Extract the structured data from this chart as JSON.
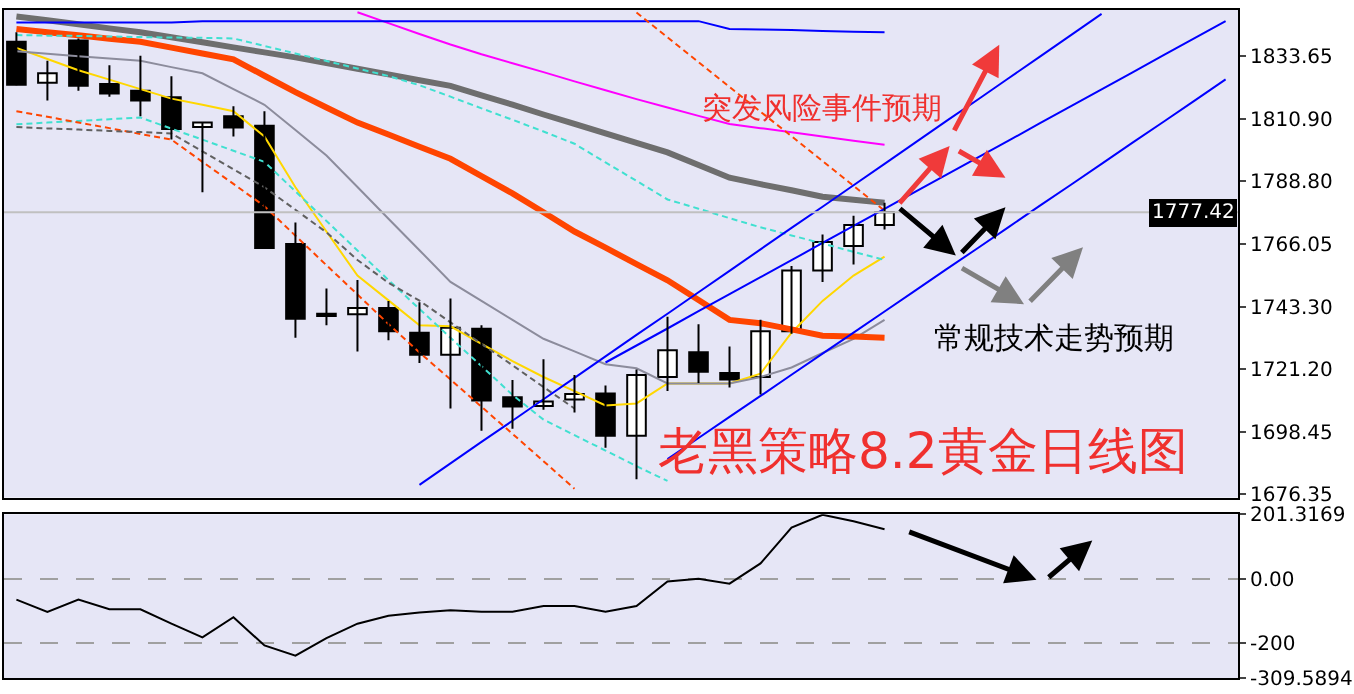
{
  "chart_data": [
    {
      "type": "candlestick",
      "title": "老黑策略8.2黄金日线图",
      "categories": [
        null,
        null,
        null,
        null,
        null,
        null,
        null,
        null,
        null,
        null,
        null,
        null,
        null,
        null,
        null,
        null,
        null,
        null,
        null,
        null,
        null,
        null,
        null,
        null,
        null,
        null,
        null,
        null,
        null,
        null,
        null,
        null,
        null,
        null,
        null,
        null,
        null,
        null,
        null,
        null
      ],
      "ohlc": [
        [
          1838.6,
          1842,
          1823,
          1823.2
        ],
        [
          1823.9,
          1831.8,
          1817.5,
          1827.3
        ],
        [
          1839.1,
          1839.8,
          1821,
          1822.8
        ],
        [
          1823.4,
          1830.2,
          1818.9,
          1820
        ],
        [
          1821,
          1833.6,
          1811.9,
          1817.5
        ],
        [
          1818.7,
          1826.2,
          1803.5,
          1807.3
        ],
        [
          1808,
          1809.6,
          1784.6,
          1809.6
        ],
        [
          1811.9,
          1815.5,
          1804.6,
          1807.8
        ],
        [
          1808.5,
          1813.7,
          1764.2,
          1764.6
        ],
        [
          1766,
          1773.7,
          1732.4,
          1739.2
        ],
        [
          1741,
          1750.1,
          1736.9,
          1740.2
        ],
        [
          1740.8,
          1753.1,
          1727.4,
          1743.1
        ],
        [
          1743.1,
          1745.6,
          1731.5,
          1734.7
        ],
        [
          1734.2,
          1745.1,
          1723.3,
          1726.3
        ],
        [
          1726.3,
          1746.5,
          1707,
          1736
        ],
        [
          1735.6,
          1736.9,
          1699,
          1709.9
        ],
        [
          1711,
          1717.2,
          1699.7,
          1707.7
        ],
        [
          1707.9,
          1724.7,
          1706.5,
          1709.5
        ],
        [
          1710.2,
          1719,
          1705.6,
          1712.2
        ],
        [
          1712.4,
          1715.2,
          1692.9,
          1697.2
        ],
        [
          1697.2,
          1721,
          1681.6,
          1719
        ],
        [
          1718.3,
          1739.9,
          1713.3,
          1727.9
        ],
        [
          1727.2,
          1737.2,
          1716.1,
          1720.2
        ],
        [
          1719.7,
          1729.2,
          1714.5,
          1717.4
        ],
        [
          1718.3,
          1738.8,
          1712,
          1734.7
        ],
        [
          1734.7,
          1758.1,
          1733.8,
          1756.5
        ],
        [
          1756.5,
          1769.4,
          1752.4,
          1766.7
        ],
        [
          1765.3,
          1776.2,
          1758.7,
          1772.8
        ],
        [
          1772.8,
          1780.8,
          1771.2,
          1777.4
        ],
        null,
        null,
        null,
        null,
        null,
        null,
        null,
        null,
        null,
        null,
        null
      ],
      "series": [
        {
          "type": "line",
          "color": "#ffd700",
          "values": [
            1836.4,
            1832.4,
            1828.4,
            1825,
            1821.6,
            1818.2,
            1816,
            1813.7,
            1804.6,
            1786.4,
            1770.5,
            1754.7,
            1745.8,
            1736.9,
            1736.5,
            1730.2,
            1724,
            1718.3,
            1713.2,
            1708.1,
            1708.8,
            1716,
            1716,
            1716,
            1719.5,
            1734.2,
            1745.6,
            1754.7,
            1761.5,
            null,
            null,
            null,
            null,
            null,
            null,
            null,
            null,
            null,
            null,
            null
          ]
        },
        {
          "type": "line",
          "color": "#8c8c9c",
          "values": [
            1835.2,
            1834.3,
            1833.4,
            1832.6,
            1831.8,
            1829.5,
            1827.3,
            1821.6,
            1816,
            1806.9,
            1797.8,
            1786.5,
            1775.1,
            1763.8,
            1752.4,
            1745.6,
            1738.8,
            1732,
            1727.5,
            1722.9,
            1721.4,
            1716,
            1716,
            1716,
            1718.3,
            1721.7,
            1726.9,
            1732,
            1738.8,
            null,
            null,
            null,
            null,
            null,
            null,
            null,
            null,
            null,
            null,
            null
          ]
        },
        {
          "type": "line",
          "color": "#ff4500",
          "values": [
            1843.2,
            1842,
            1840.9,
            1839.7,
            1838.6,
            1836.5,
            1834.4,
            1832.3,
            1826.4,
            1820.5,
            1815,
            1809.6,
            1805.3,
            1800.9,
            1796.6,
            1790.4,
            1784.2,
            1777.4,
            1770.5,
            1764.7,
            1758.8,
            1753,
            1745.9,
            1738.8,
            1737.6,
            1735.4,
            1733.1,
            1732.8,
            1732.4,
            null,
            null,
            null,
            null,
            null,
            null,
            null,
            null,
            null,
            null,
            null
          ]
        },
        {
          "type": "line",
          "color": "#6e6e6e",
          "values": [
            1847.7,
            1846.3,
            1844.9,
            1843.4,
            1842,
            1840.2,
            1838.4,
            1836.6,
            1834.8,
            1833,
            1831,
            1828.9,
            1826.9,
            1824.8,
            1822.8,
            1819.4,
            1816,
            1812.5,
            1809.1,
            1805.7,
            1802.3,
            1798.9,
            1794.4,
            1789.8,
            1787.5,
            1785.3,
            1783,
            1781.9,
            1780.8,
            null,
            null,
            null,
            null,
            null,
            null,
            null,
            null,
            null,
            null,
            null
          ]
        },
        {
          "type": "line",
          "color": "#ff00ff",
          "values": [
            null,
            null,
            null,
            null,
            null,
            null,
            null,
            null,
            null,
            null,
            null,
            1849.2,
            1845.3,
            1841.4,
            1837.6,
            1834.1,
            1830.9,
            1827.7,
            1824.4,
            1821.2,
            1818,
            1815,
            1812,
            1809.1,
            1807.6,
            1806.1,
            1804.6,
            1803.1,
            1801.6,
            null,
            null,
            null,
            null,
            null,
            null,
            null,
            null,
            null,
            null,
            null
          ]
        },
        {
          "type": "line",
          "color": "#0000ff",
          "values": [
            1845.5,
            1845.5,
            1845.5,
            1845.5,
            1845.5,
            1845.5,
            1846,
            1846,
            1846,
            1846,
            1846,
            1846,
            1846,
            1846,
            1846,
            1846,
            1846,
            1846,
            1846,
            1846,
            1846,
            1846,
            1846,
            1843.2,
            1843,
            1842.8,
            1842.5,
            1842.2,
            1842,
            null,
            null,
            null,
            null,
            null,
            null,
            null,
            null,
            null,
            null,
            null
          ]
        },
        {
          "type": "line",
          "color": "#40e0d0",
          "line_style": "dashed",
          "values": [
            1841,
            1840.8,
            1840.7,
            1840.5,
            1840.3,
            1840.1,
            1840,
            1839.8,
            1837.1,
            1834.4,
            1831.7,
            1829,
            1826.3,
            1823,
            1818.9,
            1814.7,
            1810.6,
            1806.4,
            1802,
            1795.3,
            1788.7,
            1782,
            1778.7,
            1775.3,
            1772,
            1769.1,
            1766.2,
            1763.2,
            1760.3,
            null,
            null,
            null,
            null,
            null,
            null,
            null,
            null,
            null,
            null,
            null
          ]
        },
        {
          "type": "line",
          "color": "#40e0d0",
          "line_style": "dashed",
          "values": [
            1809,
            1809.6,
            1810.2,
            1810.8,
            1811.4,
            1807.4,
            1803.5,
            1799.5,
            1795.5,
            1784.9,
            1774.3,
            1763.7,
            1753.1,
            1742.7,
            1732.4,
            1722.2,
            1711.9,
            1703,
            1697.4,
            1691.9,
            1686.3,
            1681,
            null,
            null,
            null,
            null,
            null,
            null,
            null,
            null,
            null,
            null,
            null,
            null,
            null,
            null,
            null,
            null,
            null,
            null
          ]
        },
        {
          "type": "line",
          "color": "#ff4500",
          "line_style": "dashed",
          "values": [
            1813.7,
            1811.7,
            1809.6,
            1807.6,
            1805.5,
            1803.5,
            1795.5,
            1787.6,
            1779.6,
            1769,
            1758.4,
            1747.9,
            1737.3,
            1727.1,
            1717.4,
            1707.6,
            1697.9,
            1688.1,
            1678.2,
            null,
            null,
            null,
            null,
            null,
            null,
            null,
            null,
            null,
            null,
            null,
            null,
            null,
            null,
            null,
            null,
            null,
            null,
            null,
            null,
            null
          ]
        },
        {
          "type": "line",
          "color": "#ff4500",
          "line_style": "dashed",
          "values": [
            null,
            null,
            null,
            null,
            null,
            null,
            null,
            null,
            null,
            null,
            null,
            null,
            null,
            null,
            null,
            null,
            null,
            null,
            null,
            null,
            1849.1,
            1840.2,
            1831.3,
            1822.4,
            1813.5,
            1804.7,
            1795.8,
            1786.9,
            1778,
            null,
            null,
            null,
            null,
            null,
            null,
            null,
            null,
            null,
            null,
            null
          ]
        },
        {
          "type": "line",
          "color": "#606060",
          "line_style": "dashed",
          "values": [
            1808,
            1807.5,
            1807.1,
            1806.6,
            1806.2,
            1805.7,
            1799.3,
            1792.8,
            1786.4,
            1778.3,
            1770.2,
            1760.3,
            1752.1,
            1745.7,
            1737.9,
            1730.2,
            1722.5,
            1714.7,
            1707,
            null,
            null,
            null,
            null,
            null,
            null,
            null,
            null,
            null,
            null,
            null,
            null,
            null,
            null,
            null,
            null,
            null,
            null,
            null,
            null,
            null
          ]
        },
        {
          "type": "line",
          "color": "#0000ff",
          "values": [
            null,
            null,
            null,
            null,
            null,
            null,
            null,
            null,
            null,
            null,
            null,
            null,
            null,
            1679.6,
            1687.3,
            1695,
            1702.6,
            1710.3,
            1718,
            1725.7,
            1733.4,
            1741,
            1748.7,
            1756.4,
            1764.1,
            1771.8,
            1779.4,
            1787.1,
            1794.8,
            1802.5,
            1810.2,
            1817.8,
            1825.5,
            1833.2,
            1840.9,
            1848.6,
            null,
            null,
            null,
            null
          ]
        },
        {
          "type": "line",
          "color": "#0000ff",
          "values": [
            null,
            null,
            null,
            null,
            null,
            null,
            null,
            null,
            null,
            null,
            null,
            null,
            null,
            null,
            null,
            null,
            null,
            null,
            null,
            1723.5,
            1729.6,
            1735.7,
            1741.9,
            1748,
            1754.1,
            1760.2,
            1766.4,
            1772.5,
            1778.6,
            1784.8,
            1790.9,
            1797,
            1803.1,
            1809.3,
            1815.4,
            1821.5,
            1827.6,
            1833.8,
            1839.9,
            1846
          ]
        },
        {
          "type": "line",
          "color": "#0000ff",
          "values": [
            null,
            null,
            null,
            null,
            null,
            null,
            null,
            null,
            null,
            null,
            null,
            null,
            null,
            null,
            null,
            null,
            null,
            null,
            null,
            null,
            null,
            1688.8,
            1696.4,
            1704,
            1711.5,
            1719.1,
            1726.7,
            1734.2,
            1741.8,
            1749.4,
            1757,
            1764.5,
            1772.1,
            1779.7,
            1787.2,
            1794.8,
            1802.4,
            1809.9,
            1817.5,
            1825.1
          ]
        }
      ],
      "ylim": [
        1675,
        1850
      ],
      "yticks": [
        {
          "value": 1676.35,
          "label": "1676.35"
        },
        1698.45,
        {
          "value": 1721.2,
          "label": "1721.20"
        },
        {
          "value": 1743.3,
          "label": "1743.30"
        },
        1766.05,
        {
          "value": 1788.8,
          "label": "1788.80"
        },
        {
          "value": 1810.9,
          "label": "1810.90"
        },
        1833.65
      ],
      "ref_lines": [
        {
          "axis": "y",
          "value": 1777.42,
          "label": "1777.42",
          "color": "#c0c0c0"
        }
      ],
      "annotations": [
        "突发风险事件预期",
        "常规技术走势预期"
      ],
      "tick_labels": "y",
      "grid": false,
      "marker": "none"
    },
    {
      "type": "line",
      "categories": [
        null,
        null,
        null,
        null,
        null,
        null,
        null,
        null,
        null,
        null,
        null,
        null,
        null,
        null,
        null,
        null,
        null,
        null,
        null,
        null,
        null,
        null,
        null,
        null,
        null,
        null,
        null,
        null,
        null,
        null,
        null,
        null,
        null,
        null,
        null,
        null,
        null,
        null,
        null,
        null
      ],
      "series": [
        {
          "color": "#000000",
          "values": [
            -65,
            -103,
            -65,
            -95,
            -95,
            -140,
            -183,
            -120,
            -208,
            -240,
            -185,
            -140,
            -115,
            -105,
            -98,
            -103,
            -103,
            -85,
            -85,
            -103,
            -85,
            -8,
            0,
            -15,
            48,
            160,
            200,
            180,
            155,
            null,
            null,
            null,
            null,
            null,
            null,
            null,
            null,
            null,
            null,
            null
          ]
        }
      ],
      "ylim": [
        -309.5894,
        201.3169
      ],
      "yticks": [
        {
          "value": -309.5894,
          "label": "-309.5894"
        },
        -200,
        {
          "value": 0,
          "label": "0.00"
        },
        {
          "value": 201.3169,
          "label": "201.3169"
        }
      ],
      "tick_labels": "y",
      "grid": "y",
      "marker": "none",
      "line_style": "solid"
    }
  ]
}
